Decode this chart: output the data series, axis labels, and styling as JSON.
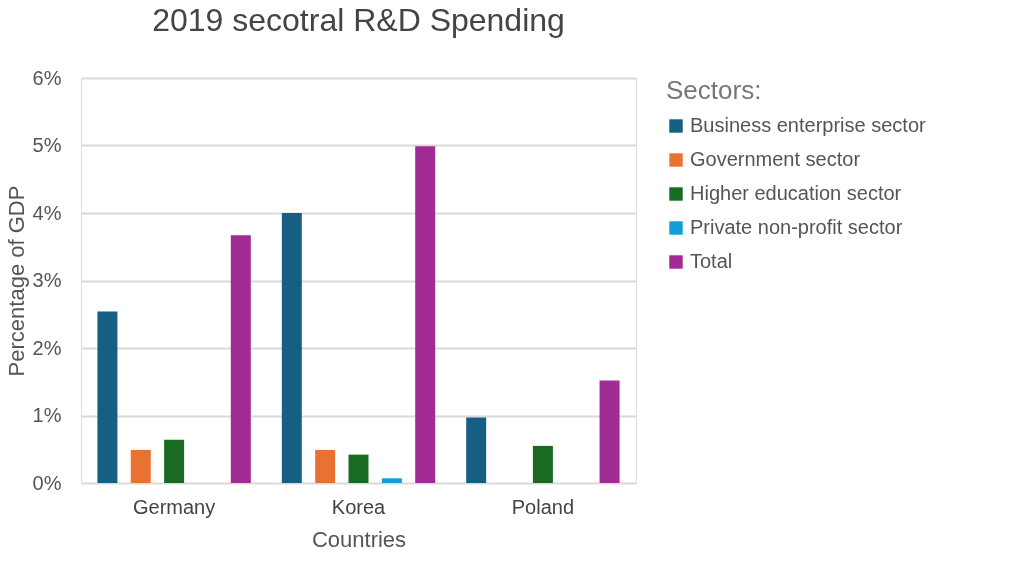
{
  "chart_data": {
    "type": "bar",
    "title": "2019 secotral R&D Spending",
    "xlabel": "Countries",
    "ylabel": "Percentage of GDP",
    "legend_title": "Sectors:",
    "categories": [
      "Germany",
      "Korea",
      "Poland"
    ],
    "series": [
      {
        "name": "Business enterprise sector",
        "color": "#175f82",
        "values": [
          2.54,
          4.0,
          0.97
        ]
      },
      {
        "name": "Government sector",
        "color": "#e97132",
        "values": [
          0.49,
          0.49,
          null
        ]
      },
      {
        "name": "Higher education sector",
        "color": "#196b24",
        "values": [
          0.64,
          0.42,
          0.55
        ]
      },
      {
        "name": "Private non-profit sector",
        "color": "#0f9ed5",
        "values": [
          null,
          0.07,
          null
        ]
      },
      {
        "name": "Total",
        "color": "#a02b93",
        "values": [
          3.67,
          4.99,
          1.52
        ]
      }
    ],
    "ylim": [
      0,
      6
    ],
    "yticks": [
      {
        "value": 0,
        "label": "0%"
      },
      {
        "value": 1,
        "label": "1%"
      },
      {
        "value": 2,
        "label": "2%"
      },
      {
        "value": 3,
        "label": "3%"
      },
      {
        "value": 4,
        "label": "4%"
      },
      {
        "value": 5,
        "label": "5%"
      },
      {
        "value": 6,
        "label": "6%"
      }
    ],
    "grid": "y",
    "legend": "right"
  }
}
